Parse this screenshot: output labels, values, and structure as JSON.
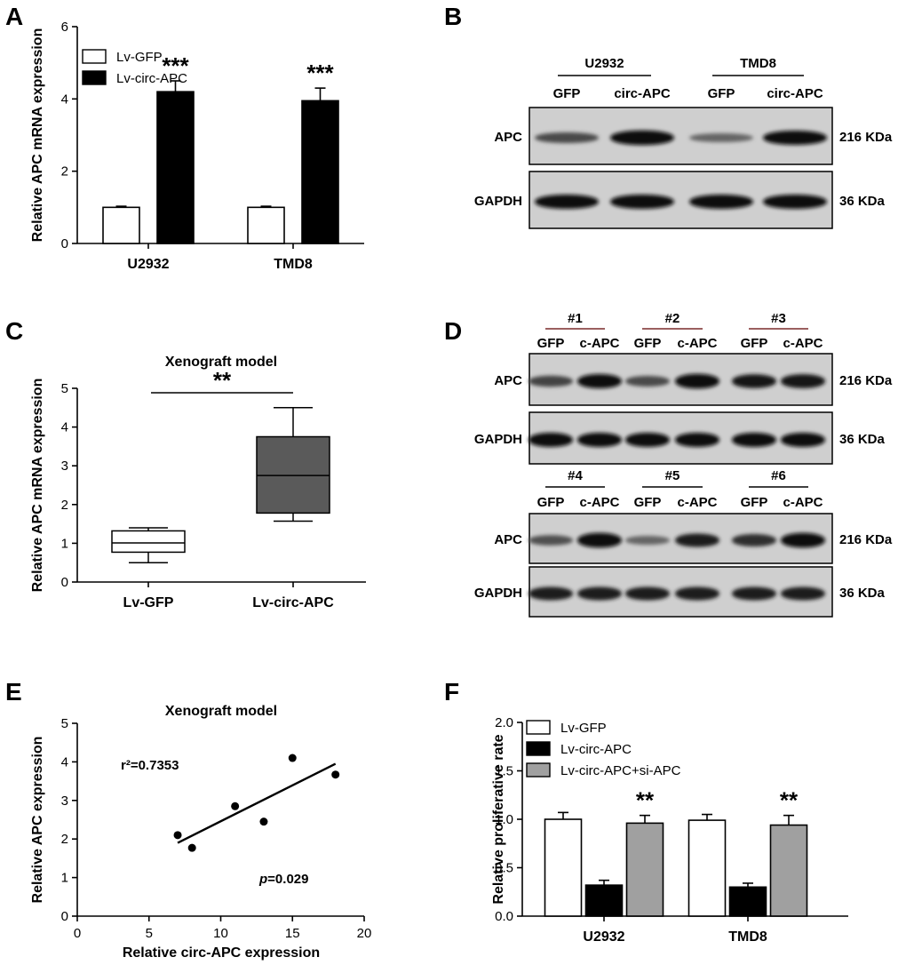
{
  "panels": {
    "A": {
      "label": "A"
    },
    "B": {
      "label": "B"
    },
    "C": {
      "label": "C"
    },
    "D": {
      "label": "D"
    },
    "E": {
      "label": "E"
    },
    "F": {
      "label": "F"
    }
  },
  "chart_data": [
    {
      "panel": "A",
      "type": "bar",
      "categories": [
        "U2932",
        "TMD8"
      ],
      "series": [
        {
          "name": "Lv-GFP",
          "values": [
            1.0,
            1.0
          ],
          "errors": [
            0.03,
            0.03
          ],
          "fill": "#ffffff"
        },
        {
          "name": "Lv-circ-APC",
          "values": [
            4.2,
            3.95
          ],
          "errors": [
            0.3,
            0.35
          ],
          "fill": "#000000"
        }
      ],
      "significance": [
        "***",
        "***"
      ],
      "ylabel": "Relative APC mRNA expression",
      "ylim": [
        0,
        6
      ],
      "yticks": [
        "0",
        "2",
        "4",
        "6"
      ],
      "legend": "top-left"
    },
    {
      "panel": "C",
      "type": "box",
      "title": "Xenograft model",
      "categories": [
        "Lv-GFP",
        "Lv-circ-APC"
      ],
      "boxes": [
        {
          "min": 0.5,
          "q1": 0.77,
          "median": 1.01,
          "q3": 1.32,
          "max": 1.4,
          "fill": "#ffffff"
        },
        {
          "min": 1.57,
          "q1": 1.78,
          "median": 2.75,
          "q3": 3.75,
          "max": 4.5,
          "fill": "#5a5a5a"
        }
      ],
      "significance": "**",
      "ylabel": "Relative APC mRNA expression",
      "ylim": [
        0,
        5
      ],
      "yticks": [
        "0",
        "1",
        "2",
        "3",
        "4",
        "5"
      ]
    },
    {
      "panel": "E",
      "type": "scatter",
      "title": "Xenograft model",
      "x": [
        7,
        8,
        11,
        13,
        15,
        18
      ],
      "y": [
        2.1,
        1.77,
        2.85,
        2.45,
        4.1,
        3.67
      ],
      "fit": {
        "x": [
          7,
          18
        ],
        "y": [
          1.9,
          3.95
        ]
      },
      "annotations": {
        "r2": "r²=0.7353",
        "p_italic": "p",
        "p_value": "=0.029"
      },
      "xlabel": "Relative circ-APC expression",
      "ylabel": "Relative APC expression",
      "xlim": [
        0,
        20
      ],
      "ylim": [
        0,
        5
      ],
      "xticks": [
        "0",
        "5",
        "10",
        "15",
        "20"
      ],
      "yticks": [
        "0",
        "1",
        "2",
        "3",
        "4",
        "5"
      ]
    },
    {
      "panel": "F",
      "type": "bar",
      "categories": [
        "U2932",
        "TMD8"
      ],
      "series": [
        {
          "name": "Lv-GFP",
          "values": [
            1.0,
            0.99
          ],
          "errors": [
            0.07,
            0.06
          ],
          "fill": "#ffffff"
        },
        {
          "name": "Lv-circ-APC",
          "values": [
            0.32,
            0.3
          ],
          "errors": [
            0.05,
            0.04
          ],
          "fill": "#000000"
        },
        {
          "name": "Lv-circ-APC+si-APC",
          "values": [
            0.96,
            0.94
          ],
          "errors": [
            0.08,
            0.1
          ],
          "fill": "#a0a0a0"
        }
      ],
      "significance": [
        "**",
        "**"
      ],
      "ylabel": "Relative proliferative rate",
      "ylim": [
        0,
        2.0
      ],
      "yticks": [
        "0.0",
        "0.5",
        "1.0",
        "1.5",
        "2.0"
      ],
      "legend": "top-left"
    }
  ],
  "blots": {
    "B": {
      "groups": [
        "U2932",
        "TMD8"
      ],
      "lanes": [
        "GFP",
        "circ-APC",
        "GFP",
        "circ-APC"
      ],
      "rows": [
        {
          "protein": "APC",
          "size": "216 KDa",
          "intensity": [
            0.55,
            1.0,
            0.35,
            0.95
          ]
        },
        {
          "protein": "GAPDH",
          "size": "36 KDa",
          "intensity": [
            0.95,
            0.95,
            0.95,
            0.95
          ]
        }
      ]
    },
    "D": {
      "sets": [
        {
          "groups": [
            "#1",
            "#2",
            "#3"
          ],
          "lanes": [
            "GFP",
            "c-APC",
            "GFP",
            "c-APC",
            "GFP",
            "c-APC"
          ],
          "rows": [
            {
              "protein": "APC",
              "size": "216 KDa",
              "intensity": [
                0.6,
                0.95,
                0.55,
                1.0,
                0.9,
                0.92
              ]
            },
            {
              "protein": "GAPDH",
              "size": "36 KDa",
              "intensity": [
                0.95,
                0.95,
                0.95,
                0.95,
                0.95,
                0.95
              ]
            }
          ]
        },
        {
          "groups": [
            "#4",
            "#5",
            "#6"
          ],
          "lanes": [
            "GFP",
            "c-APC",
            "GFP",
            "c-APC",
            "GFP",
            "c-APC"
          ],
          "rows": [
            {
              "protein": "APC",
              "size": "216 KDa",
              "intensity": [
                0.5,
                1.0,
                0.35,
                0.85,
                0.75,
                1.0
              ]
            },
            {
              "protein": "GAPDH",
              "size": "36 KDa",
              "intensity": [
                0.85,
                0.85,
                0.85,
                0.85,
                0.85,
                0.85
              ]
            }
          ]
        }
      ]
    }
  }
}
